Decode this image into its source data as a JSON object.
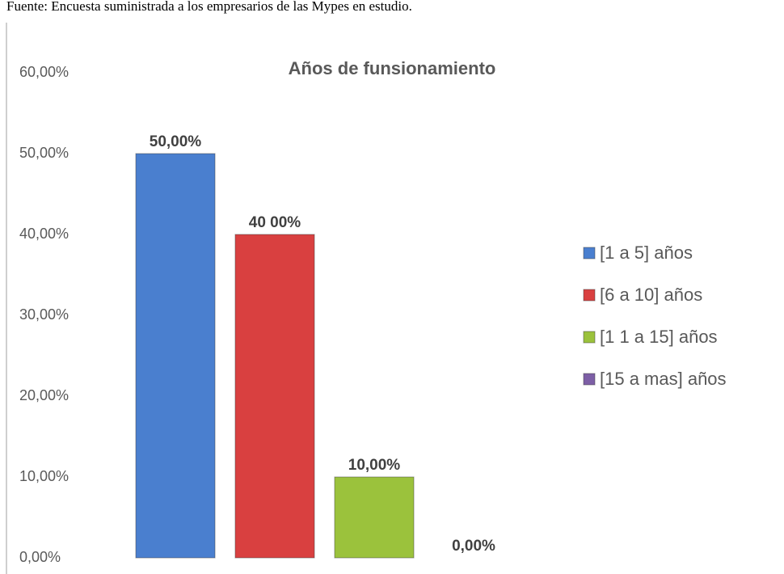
{
  "source": "Fuente: Encuesta suministrada a los empresarios de las Mypes en estudio.",
  "chart_data": {
    "type": "bar",
    "title": "Años de funsionamiento",
    "categories": [
      "[1 a 5] años",
      "[6 a 10] años",
      "[1 1 a 15] años",
      "[15 a mas] años"
    ],
    "values": [
      50,
      40,
      10,
      0
    ],
    "value_labels": [
      "50,00%",
      "40 00%",
      "10,00%",
      "0,00%"
    ],
    "colors": [
      "#4a7fcf",
      "#d94040",
      "#9bc23c",
      "#7d5fa6"
    ],
    "ylim": [
      0,
      60
    ],
    "yticks": [
      {
        "value": 0,
        "label": "0,00%"
      },
      {
        "value": 10,
        "label": "10,00%"
      },
      {
        "value": 20,
        "label": "20,00%"
      },
      {
        "value": 30,
        "label": "30,00%"
      },
      {
        "value": 40,
        "label": "40,00%"
      },
      {
        "value": 50,
        "label": "50,00%"
      },
      {
        "value": 60,
        "label": "60,00%"
      }
    ],
    "legend": "right"
  }
}
